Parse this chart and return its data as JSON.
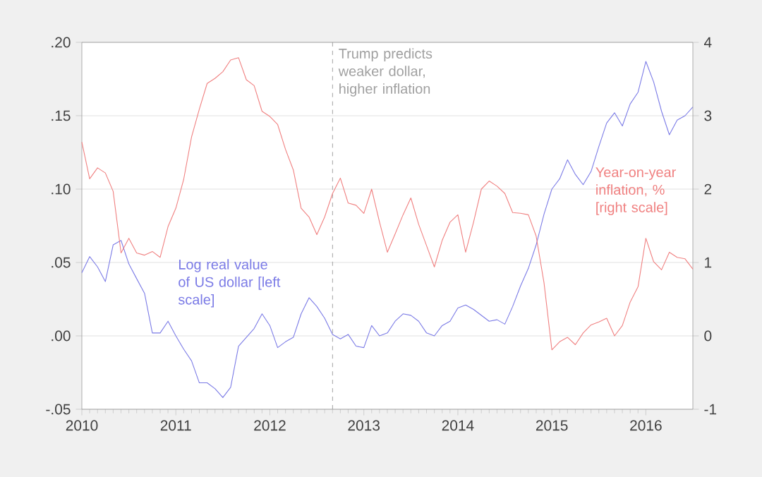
{
  "chart_data": {
    "type": "line",
    "x": [
      2010.0,
      2010.083,
      2010.167,
      2010.25,
      2010.333,
      2010.417,
      2010.5,
      2010.583,
      2010.667,
      2010.75,
      2010.833,
      2010.917,
      2011.0,
      2011.083,
      2011.167,
      2011.25,
      2011.333,
      2011.417,
      2011.5,
      2011.583,
      2011.667,
      2011.75,
      2011.833,
      2011.917,
      2012.0,
      2012.083,
      2012.167,
      2012.25,
      2012.333,
      2012.417,
      2012.5,
      2012.583,
      2012.667,
      2012.75,
      2012.833,
      2012.917,
      2013.0,
      2013.083,
      2013.167,
      2013.25,
      2013.333,
      2013.417,
      2013.5,
      2013.583,
      2013.667,
      2013.75,
      2013.833,
      2013.917,
      2014.0,
      2014.083,
      2014.167,
      2014.25,
      2014.333,
      2014.417,
      2014.5,
      2014.583,
      2014.667,
      2014.75,
      2014.833,
      2014.917,
      2015.0,
      2015.083,
      2015.167,
      2015.25,
      2015.333,
      2015.417,
      2015.5,
      2015.583,
      2015.667,
      2015.75,
      2015.833,
      2015.917,
      2016.0,
      2016.083,
      2016.167,
      2016.25,
      2016.333,
      2016.417,
      2016.5
    ],
    "series": [
      {
        "name": "Log real value of US dollar [left scale]",
        "color": "#7b7be6",
        "values": [
          0.043,
          0.054,
          0.047,
          0.037,
          0.062,
          0.065,
          0.049,
          0.039,
          0.029,
          0.002,
          0.002,
          0.01,
          0.0,
          -0.009,
          -0.017,
          -0.032,
          -0.032,
          -0.036,
          -0.042,
          -0.035,
          -0.007,
          -0.001,
          0.005,
          0.015,
          0.007,
          -0.008,
          -0.004,
          -0.001,
          0.015,
          0.026,
          0.02,
          0.012,
          0.001,
          -0.002,
          0.001,
          -0.007,
          -0.008,
          0.007,
          0.0,
          0.002,
          0.01,
          0.015,
          0.014,
          0.01,
          0.002,
          0.0,
          0.007,
          0.01,
          0.019,
          0.021,
          0.018,
          0.014,
          0.01,
          0.011,
          0.008,
          0.02,
          0.034,
          0.046,
          0.062,
          0.083,
          0.1,
          0.107,
          0.12,
          0.11,
          0.103,
          0.112,
          0.129,
          0.145,
          0.152,
          0.143,
          0.158,
          0.166,
          0.187,
          0.173,
          0.153,
          0.137,
          0.147,
          0.15,
          0.156
        ]
      },
      {
        "name": "Year-on-year inflation, % [right scale]",
        "color": "#f08080",
        "axis": "y2",
        "values": [
          2.64,
          2.14,
          2.29,
          2.22,
          1.97,
          1.13,
          1.33,
          1.13,
          1.1,
          1.15,
          1.07,
          1.49,
          1.74,
          2.13,
          2.71,
          3.09,
          3.44,
          3.51,
          3.6,
          3.76,
          3.79,
          3.49,
          3.41,
          3.06,
          2.99,
          2.88,
          2.54,
          2.26,
          1.74,
          1.62,
          1.38,
          1.62,
          1.94,
          2.15,
          1.81,
          1.78,
          1.67,
          2.0,
          1.55,
          1.14,
          1.39,
          1.65,
          1.88,
          1.52,
          1.23,
          0.94,
          1.3,
          1.55,
          1.65,
          1.14,
          1.55,
          2.0,
          2.11,
          2.04,
          1.94,
          1.68,
          1.67,
          1.65,
          1.36,
          0.72,
          -0.19,
          -0.08,
          -0.02,
          -0.12,
          0.04,
          0.15,
          0.19,
          0.24,
          0.0,
          0.14,
          0.46,
          0.67,
          1.33,
          1.01,
          0.9,
          1.14,
          1.07,
          1.05,
          0.91
        ]
      }
    ],
    "xlim": [
      2010,
      2016.5
    ],
    "xticks": [
      2010,
      2011,
      2012,
      2013,
      2014,
      2015,
      2016
    ],
    "ylim": [
      -0.05,
      0.2
    ],
    "yticks": [
      {
        "value": -0.05,
        "label": "-.05"
      },
      {
        "value": 0,
        "label": ".00"
      },
      {
        "value": 0.05,
        "label": ".05"
      },
      {
        "value": 0.1,
        "label": ".10"
      },
      {
        "value": 0.15,
        "label": ".15"
      },
      {
        "value": 0.2,
        "label": ".20"
      }
    ],
    "y2lim": [
      -1,
      4
    ],
    "y2ticks": [
      -1,
      0,
      1,
      2,
      3,
      4
    ],
    "grid": "y",
    "ref_lines": [
      {
        "axis": "x",
        "value": 2012.667,
        "label": "Trump predicts weaker dollar, higher inflation",
        "color": "#a0a0a0",
        "line_style": "dashed"
      }
    ]
  }
}
